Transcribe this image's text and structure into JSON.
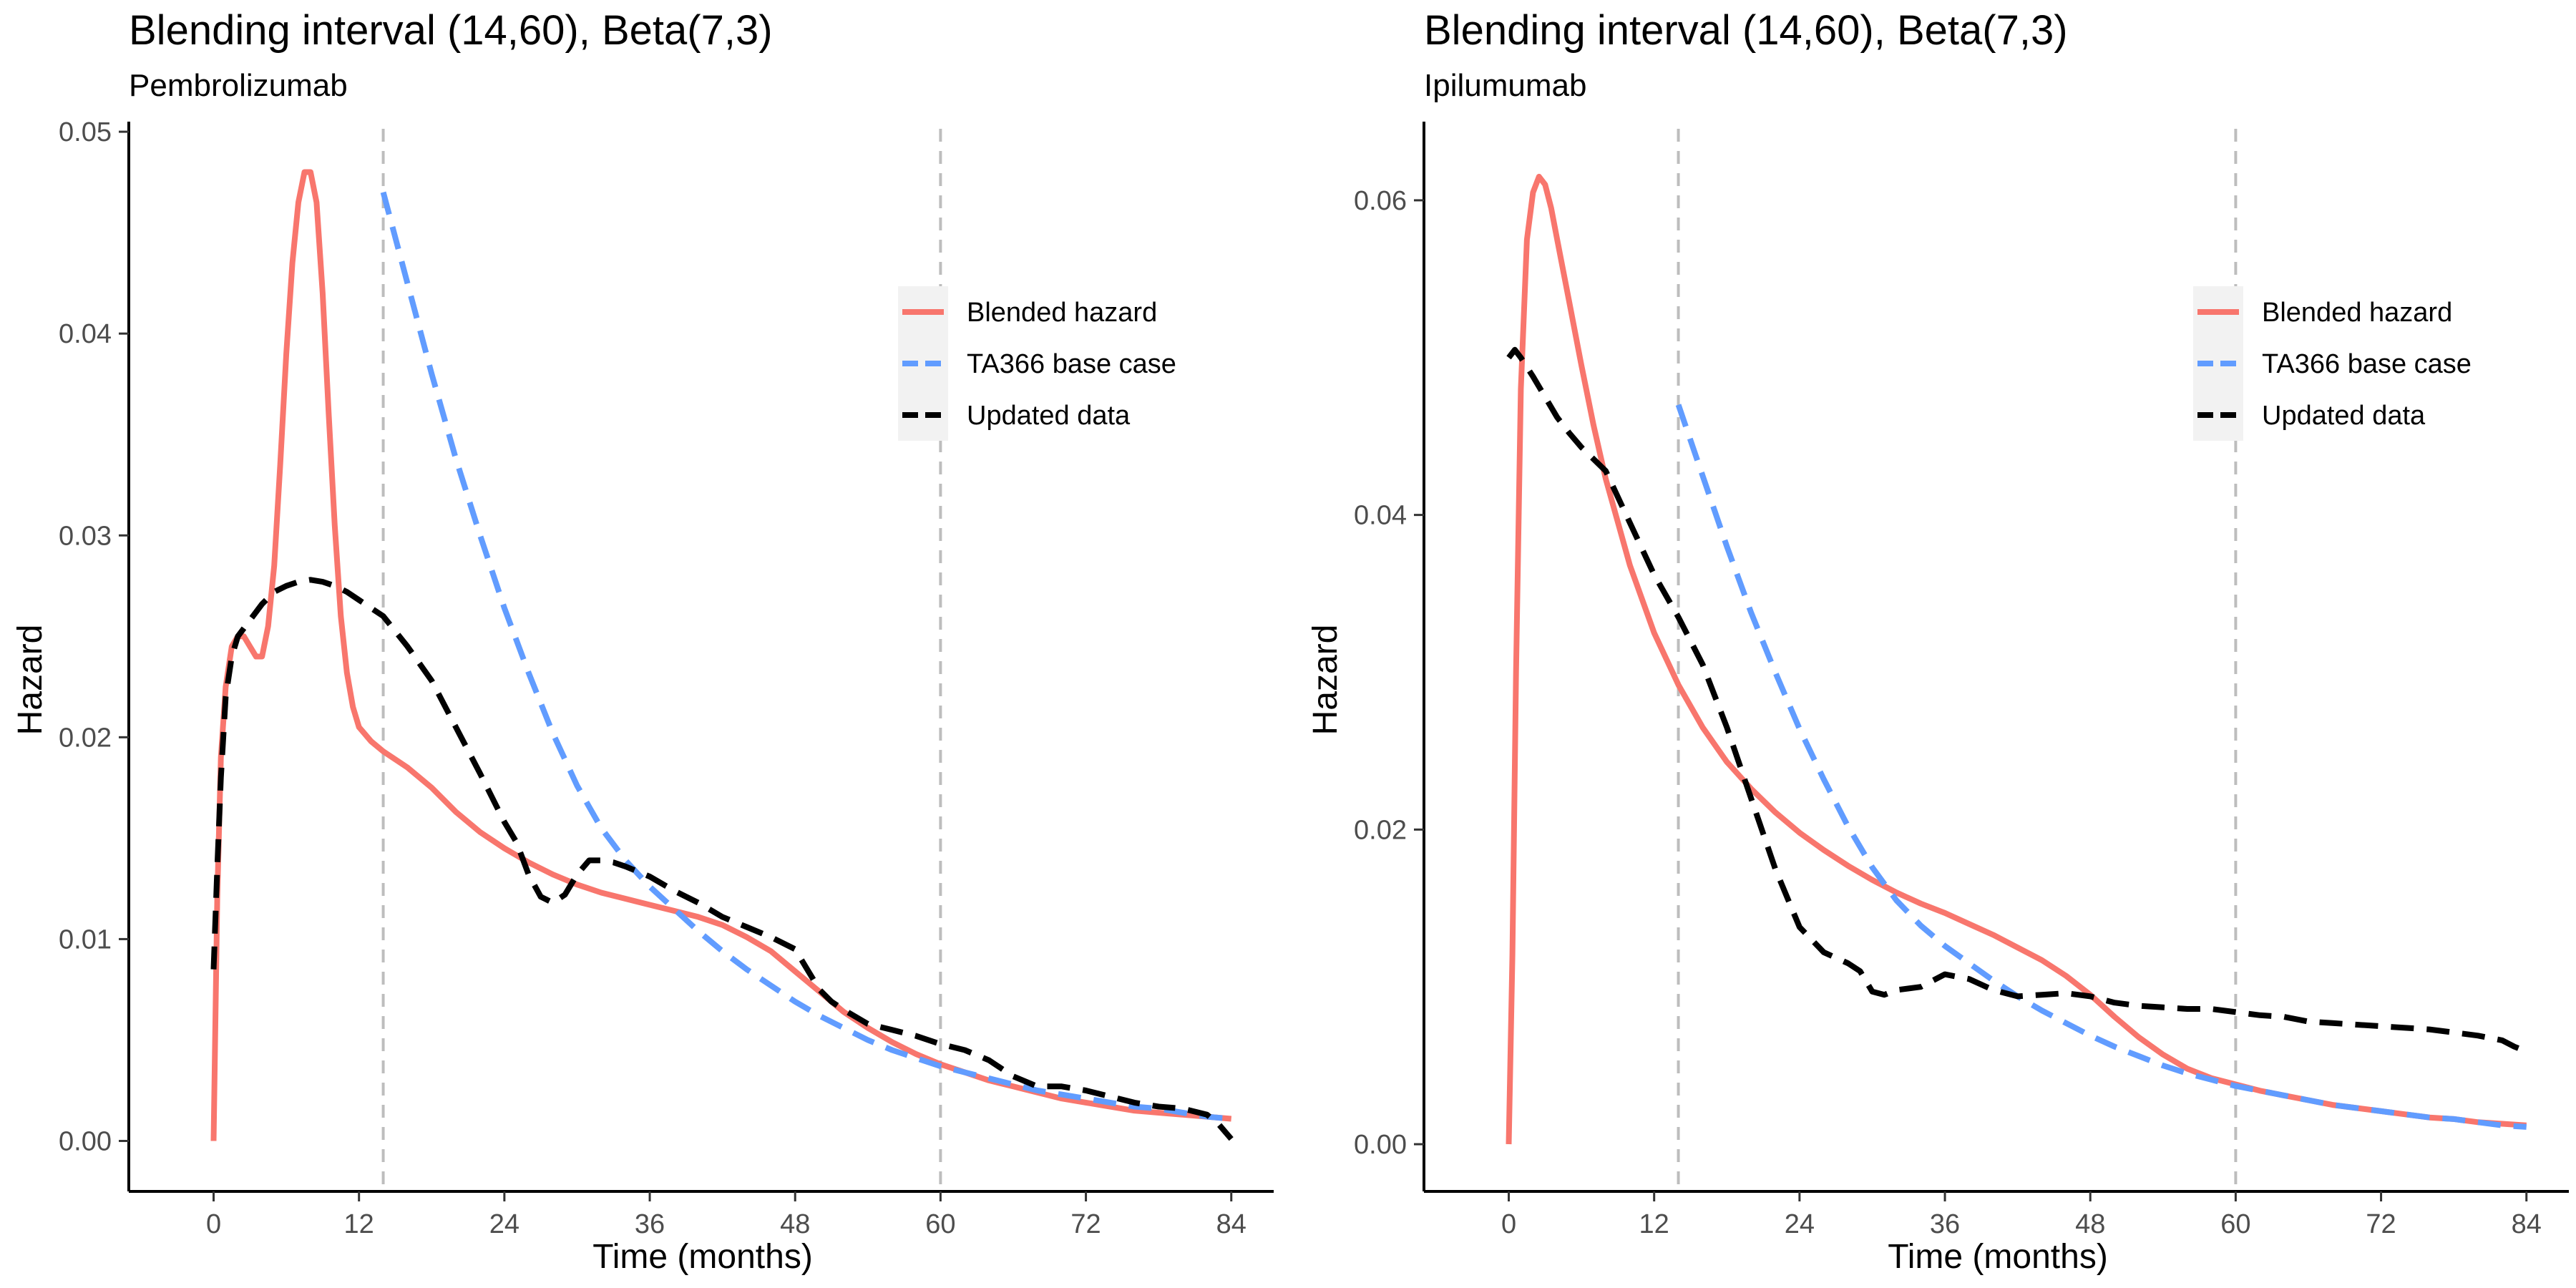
{
  "chart_data": [
    {
      "type": "line",
      "title": "Blending interval (14,60), Beta(7,3)",
      "subtitle": "Pembrolizumab",
      "xlabel": "Time (months)",
      "ylabel": "Hazard",
      "xlim": [
        -7,
        87.5
      ],
      "ylim": [
        -0.0025,
        0.0505
      ],
      "xticks": [
        0,
        12,
        24,
        36,
        48,
        60,
        72,
        84
      ],
      "yticks": [
        0.0,
        0.01,
        0.02,
        0.03,
        0.04,
        0.05
      ],
      "ytick_labels": [
        "0.00",
        "0.01",
        "0.02",
        "0.03",
        "0.04",
        "0.05"
      ],
      "vlines": [
        14,
        60
      ],
      "grid": false,
      "legend_position": "top-right",
      "series": [
        {
          "name": "Blended hazard",
          "color": "#F8766D",
          "dash": "solid",
          "x": [
            0,
            0.3,
            0.6,
            1,
            1.5,
            2,
            2.5,
            3,
            3.5,
            4,
            4.5,
            5,
            5.5,
            6,
            6.5,
            7,
            7.5,
            8,
            8.5,
            9,
            9.5,
            10,
            10.5,
            11,
            11.5,
            12,
            13,
            14,
            16,
            18,
            20,
            22,
            24,
            26,
            28,
            30,
            32,
            34,
            36,
            38,
            40,
            42,
            44,
            46,
            48,
            50,
            52,
            54,
            56,
            58,
            60,
            62,
            64,
            66,
            68,
            70,
            72,
            74,
            76,
            78,
            80,
            82,
            84
          ],
          "values": [
            0.0,
            0.012,
            0.019,
            0.0225,
            0.0245,
            0.025,
            0.025,
            0.0245,
            0.024,
            0.024,
            0.0255,
            0.0285,
            0.0335,
            0.039,
            0.0435,
            0.0465,
            0.048,
            0.048,
            0.0465,
            0.042,
            0.036,
            0.0305,
            0.026,
            0.0232,
            0.0215,
            0.0205,
            0.0198,
            0.0193,
            0.0185,
            0.0175,
            0.0163,
            0.0153,
            0.0145,
            0.0138,
            0.0132,
            0.0127,
            0.0123,
            0.012,
            0.0117,
            0.0114,
            0.0111,
            0.0107,
            0.0101,
            0.0094,
            0.0084,
            0.0074,
            0.0064,
            0.0056,
            0.0049,
            0.0043,
            0.0038,
            0.0034,
            0.003,
            0.0027,
            0.0024,
            0.0021,
            0.0019,
            0.0017,
            0.0015,
            0.0014,
            0.0013,
            0.0012,
            0.0011
          ]
        },
        {
          "name": "TA366 base case",
          "color": "#619CFF",
          "dash": "dashed",
          "x": [
            14,
            16,
            18,
            20,
            22,
            24,
            26,
            28,
            30,
            32,
            34,
            36,
            38,
            40,
            42,
            44,
            46,
            48,
            50,
            52,
            54,
            56,
            58,
            60,
            62,
            64,
            66,
            68,
            70,
            72,
            74,
            76,
            78,
            80,
            82,
            84
          ],
          "values": [
            0.047,
            0.0425,
            0.038,
            0.0338,
            0.03,
            0.0264,
            0.0232,
            0.0202,
            0.0176,
            0.0155,
            0.0139,
            0.0126,
            0.0115,
            0.0104,
            0.0094,
            0.0085,
            0.0077,
            0.0069,
            0.0062,
            0.0056,
            0.005,
            0.0045,
            0.0041,
            0.0037,
            0.0034,
            0.0031,
            0.0028,
            0.0025,
            0.0023,
            0.0021,
            0.0019,
            0.0017,
            0.0016,
            0.0014,
            0.0012,
            0.0011
          ]
        },
        {
          "name": "Updated data",
          "color": "#000000",
          "dash": "dashed",
          "x": [
            0,
            0.3,
            0.6,
            1,
            1.5,
            2,
            3,
            4,
            5,
            6,
            7,
            8,
            9,
            10,
            11,
            12,
            14,
            16,
            18,
            20,
            22,
            24,
            25,
            26,
            27,
            28,
            29,
            30,
            31,
            32,
            33,
            34,
            36,
            38,
            40,
            42,
            44,
            46,
            48,
            49,
            50,
            51,
            52,
            54,
            56,
            58,
            60,
            62,
            64,
            66,
            68,
            70,
            72,
            74,
            76,
            78,
            80,
            82,
            83,
            84
          ],
          "values": [
            0.0085,
            0.0135,
            0.018,
            0.022,
            0.024,
            0.025,
            0.0258,
            0.0266,
            0.0272,
            0.0275,
            0.0277,
            0.0278,
            0.0277,
            0.0275,
            0.0272,
            0.0268,
            0.026,
            0.0245,
            0.0228,
            0.0205,
            0.0182,
            0.0158,
            0.0148,
            0.0132,
            0.0121,
            0.0118,
            0.0122,
            0.0132,
            0.0139,
            0.0139,
            0.0138,
            0.0136,
            0.0131,
            0.0124,
            0.0118,
            0.0111,
            0.0106,
            0.0101,
            0.0095,
            0.0085,
            0.0075,
            0.0069,
            0.0065,
            0.0058,
            0.0055,
            0.0052,
            0.0048,
            0.0045,
            0.004,
            0.0032,
            0.0027,
            0.0027,
            0.0025,
            0.0022,
            0.0019,
            0.0017,
            0.0016,
            0.0013,
            0.0008,
            0.0001
          ]
        }
      ]
    },
    {
      "type": "line",
      "title": "Blending interval (14,60), Beta(7,3)",
      "subtitle": "Ipilumumab",
      "xlabel": "Time (months)",
      "ylabel": "Hazard",
      "xlim": [
        -7,
        87.5
      ],
      "ylim": [
        -0.003,
        0.065
      ],
      "xticks": [
        0,
        12,
        24,
        36,
        48,
        60,
        72,
        84
      ],
      "yticks": [
        0.0,
        0.02,
        0.04,
        0.06
      ],
      "ytick_labels": [
        "0.00",
        "0.02",
        "0.04",
        "0.06"
      ],
      "vlines": [
        14,
        60
      ],
      "grid": false,
      "legend_position": "top-right",
      "series": [
        {
          "name": "Blended hazard",
          "color": "#F8766D",
          "dash": "solid",
          "x": [
            0,
            0.3,
            0.6,
            1,
            1.5,
            2,
            2.5,
            3,
            3.5,
            4,
            5,
            6,
            7,
            8,
            10,
            12,
            14,
            16,
            18,
            20,
            22,
            24,
            26,
            28,
            30,
            32,
            34,
            36,
            38,
            40,
            42,
            44,
            46,
            48,
            50,
            52,
            54,
            56,
            58,
            60,
            62,
            64,
            66,
            68,
            70,
            72,
            74,
            76,
            78,
            80,
            82,
            84
          ],
          "values": [
            0.0,
            0.012,
            0.03,
            0.048,
            0.0575,
            0.0605,
            0.0615,
            0.061,
            0.0595,
            0.0575,
            0.0535,
            0.0495,
            0.0457,
            0.0423,
            0.0368,
            0.0325,
            0.0292,
            0.0265,
            0.0243,
            0.0226,
            0.0211,
            0.0198,
            0.0187,
            0.0177,
            0.0168,
            0.016,
            0.0153,
            0.0147,
            0.014,
            0.0133,
            0.0125,
            0.0117,
            0.0107,
            0.0095,
            0.0081,
            0.0068,
            0.0057,
            0.0048,
            0.0042,
            0.0038,
            0.0034,
            0.0031,
            0.0028,
            0.0025,
            0.0023,
            0.0021,
            0.0019,
            0.0017,
            0.0016,
            0.0014,
            0.0013,
            0.0012
          ]
        },
        {
          "name": "TA366 base case",
          "color": "#619CFF",
          "dash": "dashed",
          "x": [
            14,
            16,
            18,
            20,
            22,
            24,
            26,
            28,
            30,
            32,
            34,
            36,
            38,
            40,
            42,
            44,
            46,
            48,
            50,
            52,
            54,
            56,
            58,
            60,
            62,
            64,
            66,
            68,
            70,
            72,
            74,
            76,
            78,
            80,
            82,
            84
          ],
          "values": [
            0.047,
            0.0425,
            0.038,
            0.0338,
            0.03,
            0.0264,
            0.0232,
            0.0202,
            0.0176,
            0.0155,
            0.0139,
            0.0126,
            0.0115,
            0.0104,
            0.0094,
            0.0085,
            0.0077,
            0.0069,
            0.0062,
            0.0056,
            0.005,
            0.0045,
            0.0041,
            0.0037,
            0.0034,
            0.0031,
            0.0028,
            0.0025,
            0.0023,
            0.0021,
            0.0019,
            0.0017,
            0.0016,
            0.0014,
            0.0012,
            0.0011
          ]
        },
        {
          "name": "Updated data",
          "color": "#000000",
          "dash": "dashed",
          "x": [
            0,
            0.5,
            1,
            2,
            3,
            4,
            5,
            6,
            8,
            10,
            12,
            14,
            16,
            18,
            20,
            22,
            24,
            26,
            28,
            29,
            30,
            31,
            32,
            34,
            36,
            38,
            40,
            42,
            44,
            46,
            48,
            50,
            52,
            54,
            56,
            58,
            60,
            62,
            64,
            66,
            68,
            70,
            72,
            74,
            76,
            78,
            80,
            82,
            83,
            84
          ],
          "values": [
            0.05,
            0.0505,
            0.05,
            0.0488,
            0.0475,
            0.0462,
            0.0452,
            0.0443,
            0.0428,
            0.0395,
            0.0362,
            0.0335,
            0.0305,
            0.0265,
            0.022,
            0.0175,
            0.0138,
            0.0122,
            0.0115,
            0.011,
            0.0097,
            0.0095,
            0.0098,
            0.01,
            0.0108,
            0.0105,
            0.0098,
            0.0094,
            0.0095,
            0.0096,
            0.0094,
            0.009,
            0.0088,
            0.0087,
            0.0086,
            0.0086,
            0.0084,
            0.0082,
            0.0081,
            0.0078,
            0.0077,
            0.0076,
            0.0075,
            0.0074,
            0.0073,
            0.0071,
            0.0069,
            0.0066,
            0.0062,
            0.0059
          ]
        }
      ]
    }
  ]
}
